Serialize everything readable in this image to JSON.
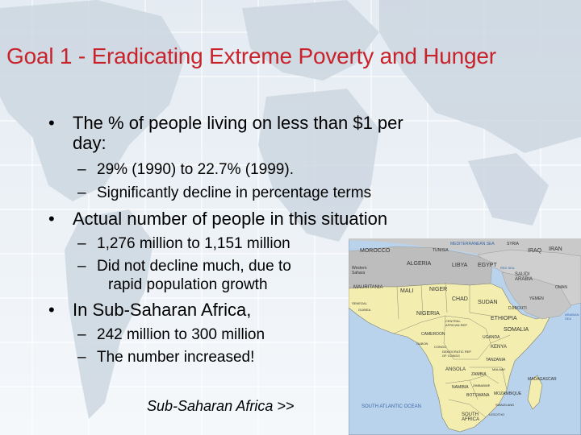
{
  "slide": {
    "title": "Goal 1 - Eradicating Extreme Poverty and Hunger",
    "bullets": [
      {
        "text_line1": "The % of people living on less than $1 per",
        "text_line2": "day:",
        "subs": [
          "29% (1990) to 22.7% (1999).",
          "Significantly decline in percentage terms"
        ]
      },
      {
        "text": "Actual number of people in this situation",
        "subs": [
          "1,276 million to 1,151 million",
          "Did not decline much, due to",
          "rapid population growth"
        ]
      },
      {
        "text": "In Sub-Saharan Africa,",
        "subs": [
          "242 million to 300 million",
          "The number increased!"
        ]
      }
    ],
    "link_text": "Sub-Saharan Africa >>"
  },
  "map": {
    "labels": {
      "morocco": "MOROCCO",
      "algeria": "ALGERIA",
      "libya": "LIBYA",
      "egypt": "EGYPT",
      "western_sahara": "Western Sahara",
      "mauritania": "MAURITANIA",
      "mali": "MALI",
      "niger": "NIGER",
      "chad": "CHAD",
      "sudan": "SUDAN",
      "nigeria": "NIGERIA",
      "ethiopia": "ETHIOPIA",
      "somalia": "SOMALIA",
      "kenya": "KENYA",
      "tanzania": "TANZANIA",
      "angola": "ANGOLA",
      "zambia": "ZAMBIA",
      "namibia": "NAMIBIA",
      "botswana": "BOTSWANA",
      "mozambique": "MOZAMBIQUE",
      "madagascar": "MADAGASCAR",
      "south_africa": "SOUTH AFRICA",
      "drc": "DEMOCRATIC REP. OF CONGO",
      "cameroon": "CAMEROON",
      "car": "CENTRAL AFRICAN REP.",
      "saudi_arabia": "SAUDI ARABIA",
      "iraq": "IRAQ",
      "iran": "IRAN",
      "syria": "SYRIA",
      "yemen": "YEMEN",
      "oman": "OMAN",
      "med_sea": "MEDITERRANEAN SEA",
      "arabian_sea": "ARABIAN SEA",
      "atlantic": "SOUTH ATLANTIC OCEAN",
      "red_sea": "RED SEA",
      "djibouti": "DJIBOUTI",
      "uganda": "UGANDA",
      "tunisia": "TUNISIA",
      "senegal": "SENEGAL",
      "guinea": "GUINEA",
      "lesotho": "LESOTHO",
      "swaziland": "SWAZILAND",
      "zimbabwe": "ZIMBABWE",
      "malawi": "MALAWI",
      "gabon": "GABON",
      "congo": "CONGO"
    }
  }
}
